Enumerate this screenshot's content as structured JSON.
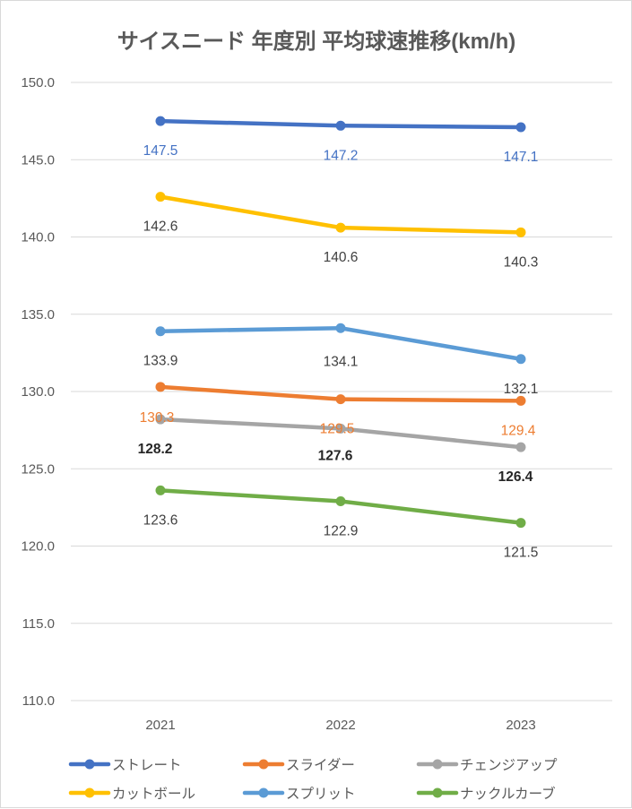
{
  "chart_data": {
    "type": "line",
    "title": "サイスニード 年度別 平均球速推移(km/h)",
    "xlabel": "",
    "ylabel": "",
    "categories": [
      "2021",
      "2022",
      "2023"
    ],
    "ylim": [
      110,
      150
    ],
    "yticks": [
      "110.0",
      "115.0",
      "120.0",
      "125.0",
      "130.0",
      "135.0",
      "140.0",
      "145.0",
      "150.0"
    ],
    "grid": true,
    "legend_position": "bottom",
    "series": [
      {
        "name": "ストレート",
        "color": "#4472c4",
        "values": [
          147.5,
          147.2,
          147.1
        ],
        "labels": [
          "147.5",
          "147.2",
          "147.1"
        ],
        "label_color": "#4472c4",
        "label_weight": "normal"
      },
      {
        "name": "スライダー",
        "color": "#ed7d31",
        "values": [
          130.3,
          129.5,
          129.4
        ],
        "labels": [
          "130.3",
          "129.5",
          "129.4"
        ],
        "label_color": "#ed7d31",
        "label_weight": "normal"
      },
      {
        "name": "チェンジアップ",
        "color": "#a5a5a5",
        "values": [
          128.2,
          127.6,
          126.4
        ],
        "labels": [
          "128.2",
          "127.6",
          "126.4"
        ],
        "label_color": "#262626",
        "label_weight": "bold"
      },
      {
        "name": "カットボール",
        "color": "#ffc000",
        "values": [
          142.6,
          140.6,
          140.3
        ],
        "labels": [
          "142.6",
          "140.6",
          "140.3"
        ],
        "label_color": "#404040",
        "label_weight": "normal"
      },
      {
        "name": "スプリット",
        "color": "#5b9bd5",
        "values": [
          133.9,
          134.1,
          132.1
        ],
        "labels": [
          "133.9",
          "134.1",
          "132.1"
        ],
        "label_color": "#404040",
        "label_weight": "normal"
      },
      {
        "name": "ナックルカーブ",
        "color": "#70ad47",
        "values": [
          123.6,
          122.9,
          121.5
        ],
        "labels": [
          "123.6",
          "122.9",
          "121.5"
        ],
        "label_color": "#404040",
        "label_weight": "normal"
      }
    ]
  }
}
